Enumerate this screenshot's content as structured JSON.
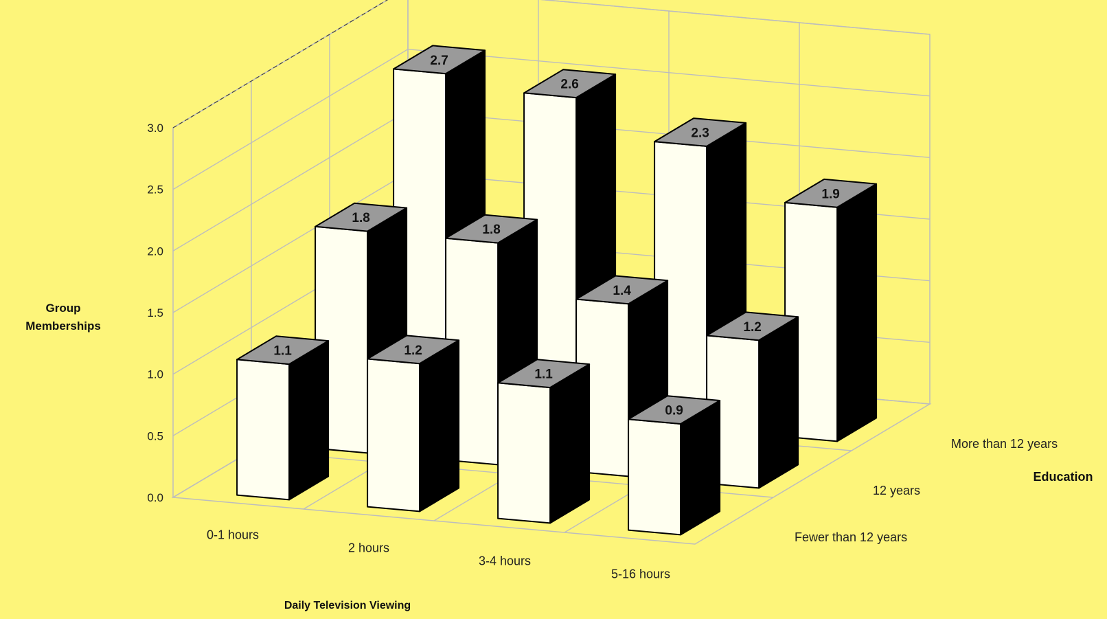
{
  "background_color": "#FDF57A",
  "chart_data": {
    "type": "bar",
    "title": "",
    "ylabel_lines": [
      "Group",
      "Memberships"
    ],
    "xlabel": "Daily Television Viewing",
    "zlabel": "Education",
    "ylim": [
      0,
      3
    ],
    "yticks": [
      "0.0",
      "0.5",
      "1.0",
      "1.5",
      "2.0",
      "2.5",
      "3.0"
    ],
    "categories": [
      "0-1 hours",
      "2 hours",
      "3-4 hours",
      "5-16 hours"
    ],
    "series": [
      {
        "name": "Fewer than 12 years",
        "values": [
          1.1,
          1.2,
          1.1,
          0.9
        ],
        "labels": [
          "1.1",
          "1.2",
          "1.1",
          "0.9"
        ]
      },
      {
        "name": "12 years",
        "values": [
          1.8,
          1.8,
          1.4,
          1.2
        ],
        "labels": [
          "1.8",
          "1.8",
          "1.4",
          "1.2"
        ]
      },
      {
        "name": "More than 12 years",
        "values": [
          2.7,
          2.6,
          2.3,
          1.9
        ],
        "labels": [
          "2.7",
          "2.6",
          "2.3",
          "1.9"
        ]
      }
    ],
    "grid": true,
    "bar_front_color": "#FFFFF0",
    "bar_side_color": "#000000",
    "bar_top_color": "#9A9A9A",
    "grid_color": "#BDBDBD"
  }
}
